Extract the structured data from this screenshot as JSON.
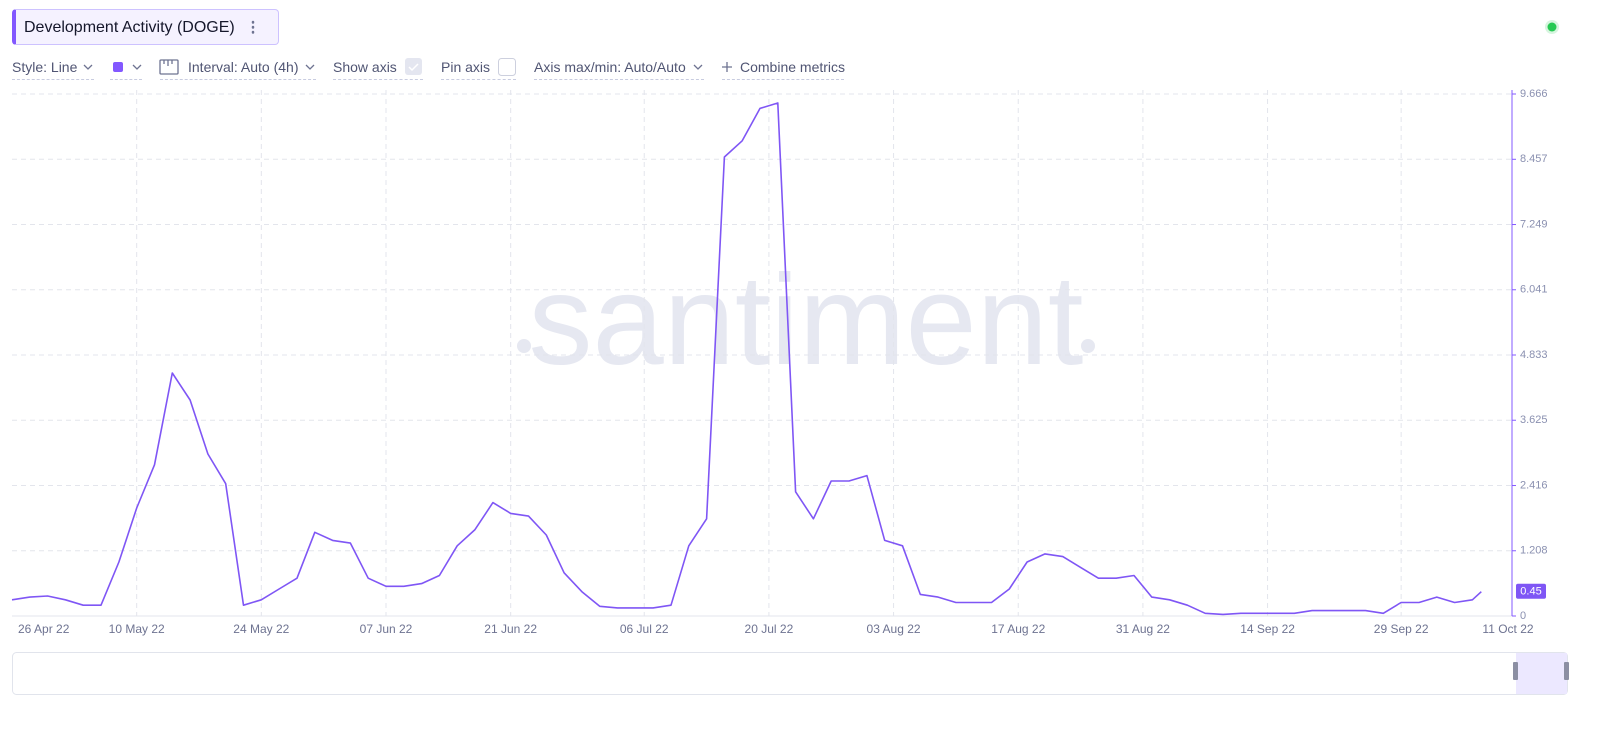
{
  "chart_data": {
    "type": "line",
    "title": "Development Activity (DOGE)",
    "color": "#7f56f5",
    "x": [
      "26 Apr 22",
      "28 Apr 22",
      "30 Apr 22",
      "02 May 22",
      "04 May 22",
      "06 May 22",
      "08 May 22",
      "10 May 22",
      "12 May 22",
      "14 May 22",
      "16 May 22",
      "18 May 22",
      "20 May 22",
      "22 May 22",
      "24 May 22",
      "26 May 22",
      "28 May 22",
      "30 May 22",
      "01 Jun 22",
      "03 Jun 22",
      "05 Jun 22",
      "07 Jun 22",
      "09 Jun 22",
      "11 Jun 22",
      "13 Jun 22",
      "15 Jun 22",
      "17 Jun 22",
      "19 Jun 22",
      "21 Jun 22",
      "23 Jun 22",
      "25 Jun 22",
      "27 Jun 22",
      "29 Jun 22",
      "01 Jul 22",
      "03 Jul 22",
      "05 Jul 22",
      "07 Jul 22",
      "09 Jul 22",
      "11 Jul 22",
      "13 Jul 22",
      "15 Jul 22",
      "17 Jul 22",
      "19 Jul 22",
      "21 Jul 22",
      "23 Jul 22",
      "25 Jul 22",
      "27 Jul 22",
      "29 Jul 22",
      "31 Jul 22",
      "02 Aug 22",
      "04 Aug 22",
      "06 Aug 22",
      "08 Aug 22",
      "10 Aug 22",
      "12 Aug 22",
      "14 Aug 22",
      "16 Aug 22",
      "18 Aug 22",
      "20 Aug 22",
      "22 Aug 22",
      "24 Aug 22",
      "26 Aug 22",
      "28 Aug 22",
      "30 Aug 22",
      "01 Sep 22",
      "03 Sep 22",
      "05 Sep 22",
      "07 Sep 22",
      "09 Sep 22",
      "11 Sep 22",
      "13 Sep 22",
      "15 Sep 22",
      "17 Sep 22",
      "19 Sep 22",
      "21 Sep 22",
      "23 Sep 22",
      "25 Sep 22",
      "27 Sep 22",
      "29 Sep 22",
      "01 Oct 22",
      "03 Oct 22",
      "05 Oct 22",
      "07 Oct 22",
      "08 Oct 22"
    ],
    "values": [
      0.3,
      0.35,
      0.37,
      0.3,
      0.2,
      0.2,
      1.0,
      2.0,
      2.8,
      4.5,
      4.0,
      3.0,
      2.45,
      0.2,
      0.3,
      0.5,
      0.7,
      1.55,
      1.4,
      1.35,
      0.7,
      0.55,
      0.55,
      0.6,
      0.75,
      1.3,
      1.6,
      2.1,
      1.9,
      1.85,
      1.5,
      0.8,
      0.45,
      0.18,
      0.15,
      0.15,
      0.15,
      0.2,
      1.3,
      1.8,
      8.5,
      8.8,
      9.4,
      9.5,
      2.3,
      1.8,
      2.5,
      2.5,
      2.6,
      1.4,
      1.3,
      0.4,
      0.35,
      0.25,
      0.25,
      0.25,
      0.5,
      1.0,
      1.15,
      1.1,
      0.9,
      0.7,
      0.7,
      0.75,
      0.35,
      0.3,
      0.2,
      0.05,
      0.03,
      0.05,
      0.05,
      0.05,
      0.05,
      0.1,
      0.1,
      0.1,
      0.1,
      0.05,
      0.25,
      0.25,
      0.35,
      0.25,
      0.3,
      0.45
    ],
    "xlim": [
      "26 Apr 22",
      "11 Oct 22"
    ],
    "xticks": [
      "26 Apr 22",
      "10 May 22",
      "24 May 22",
      "07 Jun 22",
      "21 Jun 22",
      "06 Jul 22",
      "20 Jul 22",
      "03 Aug 22",
      "17 Aug 22",
      "31 Aug 22",
      "14 Sep 22",
      "29 Sep 22",
      "11 Oct 22"
    ],
    "ylim": [
      0,
      9.666
    ],
    "yticks": [
      0,
      1.208,
      2.416,
      3.625,
      4.833,
      6.041,
      7.249,
      8.457,
      9.666
    ],
    "grid": true
  },
  "toolbar": {
    "style": "Style: Line",
    "interval": "Interval: Auto (4h)",
    "show_axis": "Show axis",
    "pin_axis": "Pin axis",
    "axis_minmax": "Axis max/min: Auto/Auto",
    "combine": "Combine metrics"
  },
  "watermark": "santiment"
}
